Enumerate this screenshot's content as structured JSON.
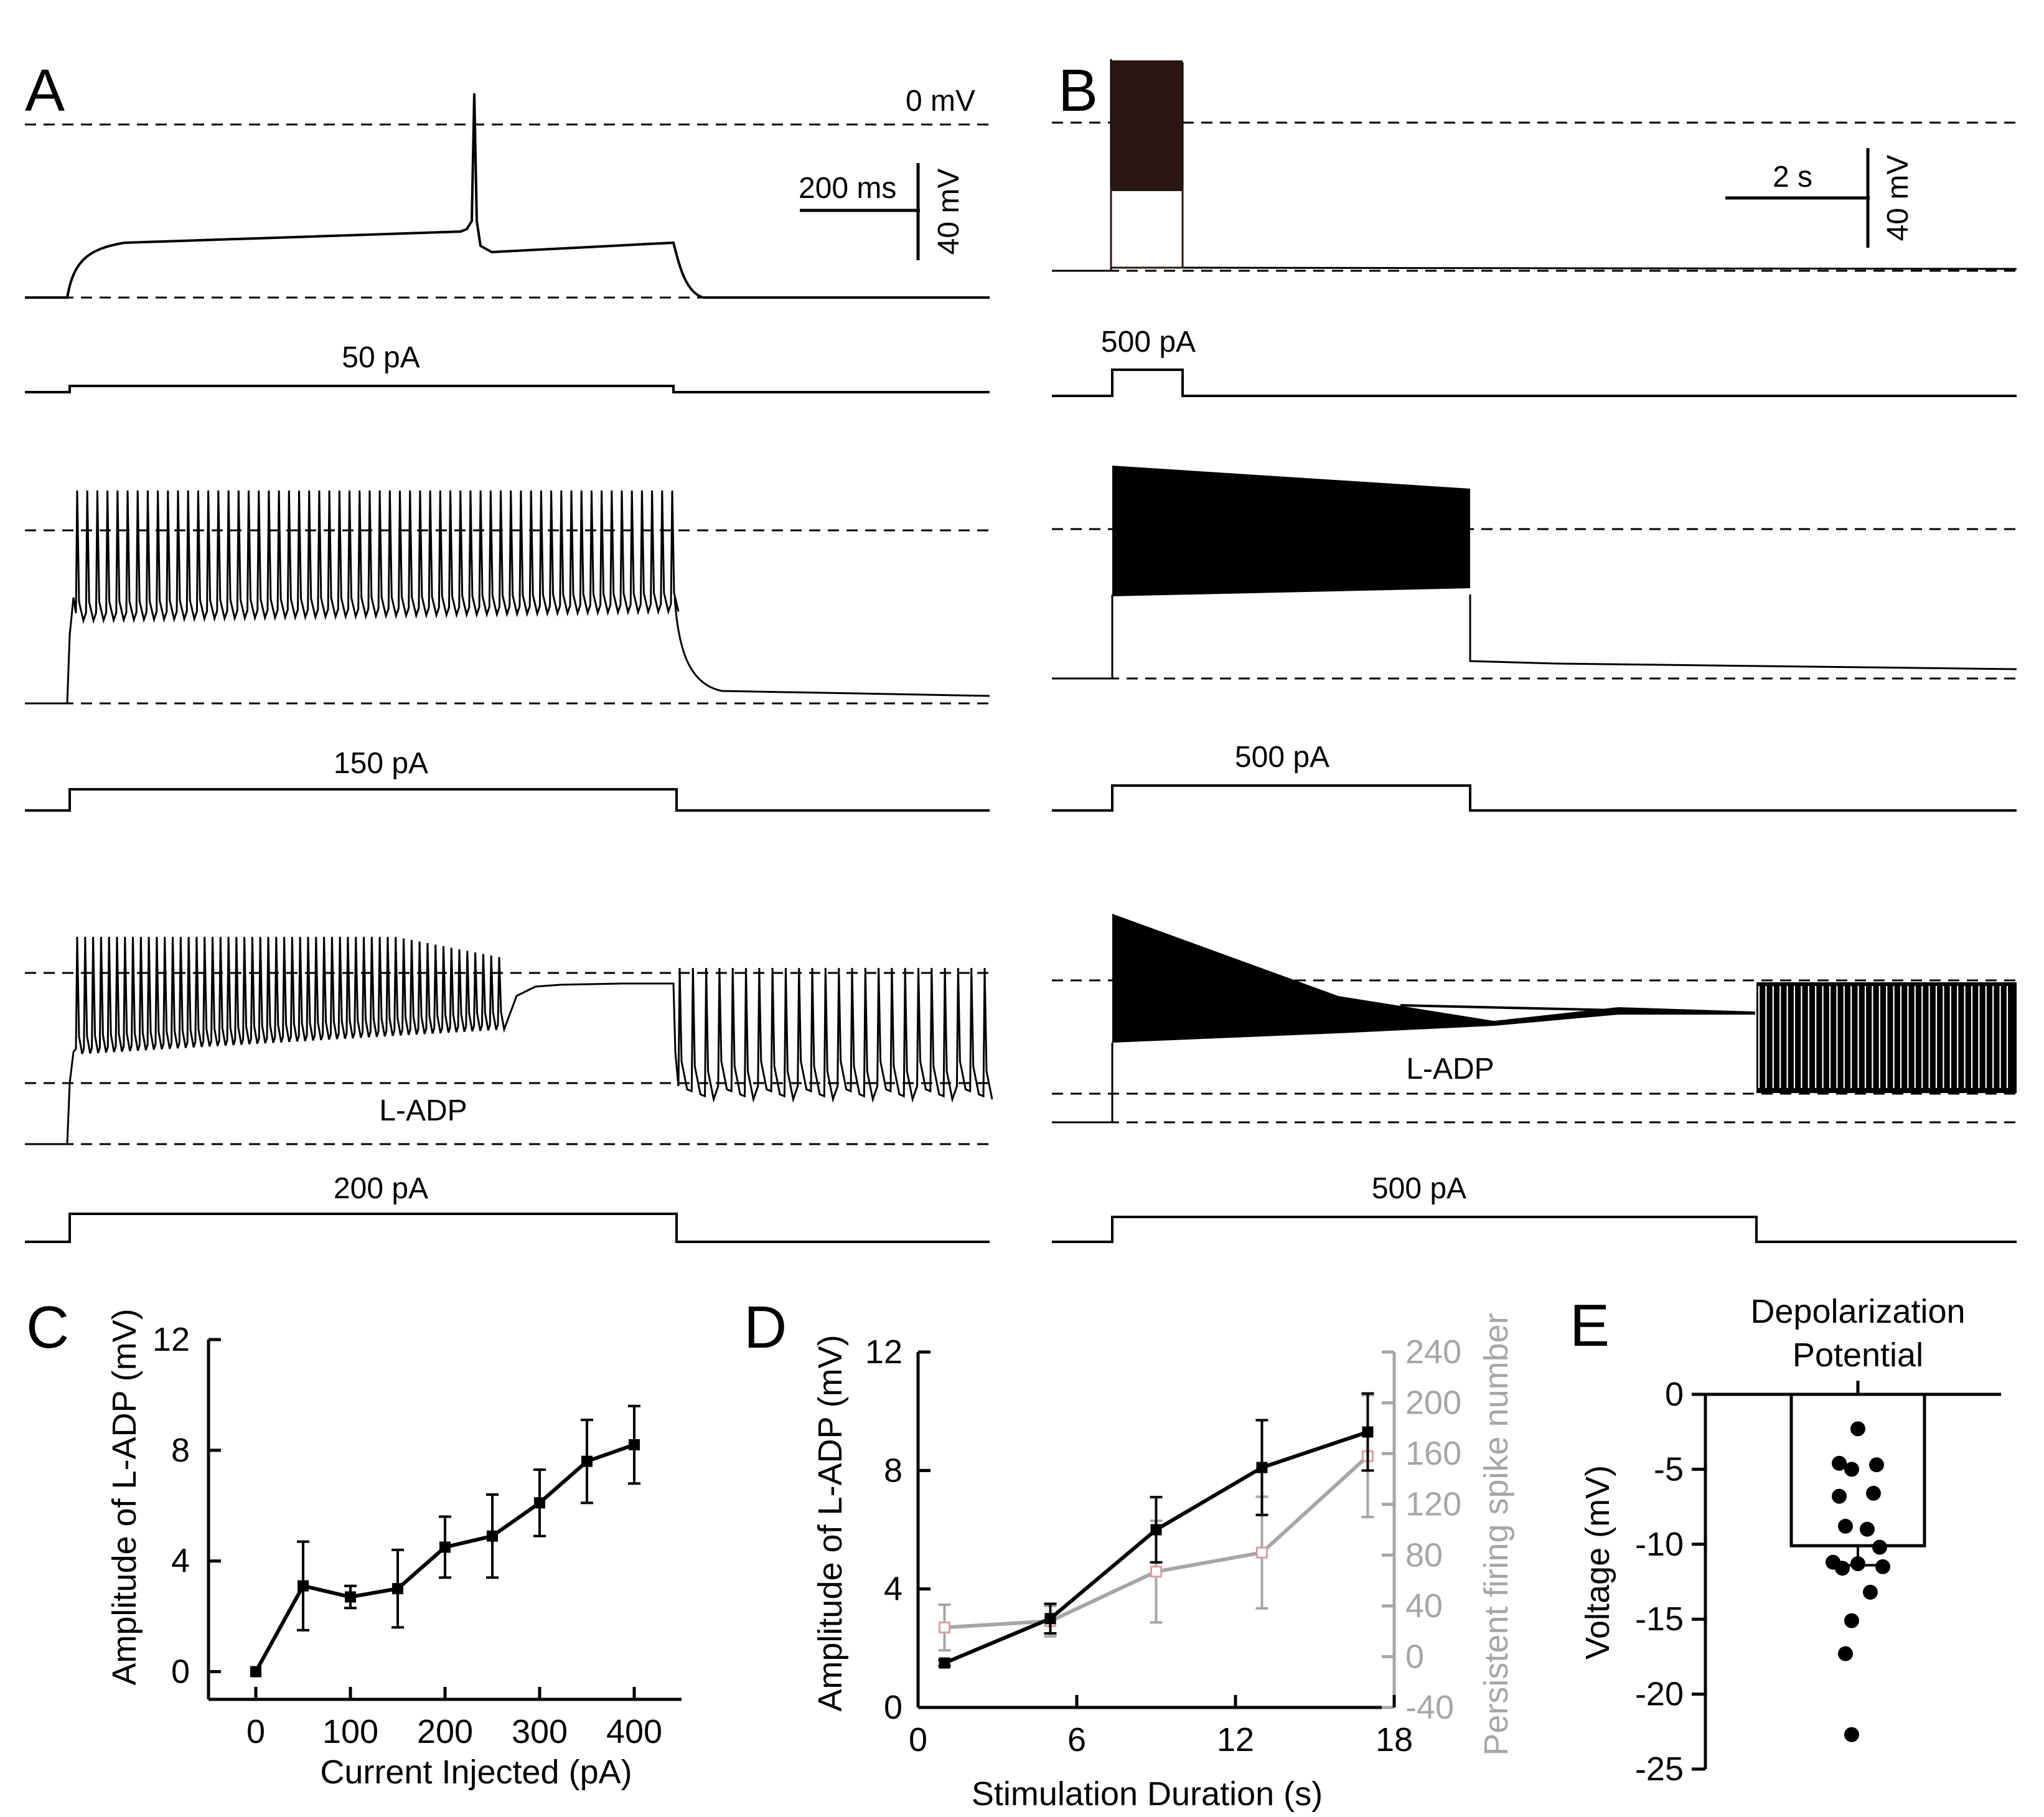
{
  "colors": {
    "black": "#000000",
    "gray": "#a6a6a6",
    "dark_brown": "#2a1612"
  },
  "panels": {
    "A": {
      "letter": "A",
      "zero_label": "0 mV",
      "scalebar": {
        "time": "200 ms",
        "voltage": "40 mV"
      },
      "stim_labels": [
        "50 pA",
        "150 pA",
        "200 pA"
      ],
      "ladp_label": "L-ADP"
    },
    "B": {
      "letter": "B",
      "scalebar": {
        "time": "2 s",
        "voltage": "40 mV"
      },
      "stim_labels": [
        "500 pA",
        "500 pA",
        "500 pA"
      ],
      "ladp_label": "L-ADP"
    },
    "C": {
      "letter": "C"
    },
    "D": {
      "letter": "D"
    },
    "E": {
      "letter": "E"
    }
  },
  "chart_data": [
    {
      "panel": "C",
      "type": "line",
      "title": "",
      "xlabel": "Current Injected (pA)",
      "ylabel": "Amplitude of L-ADP  (mV)",
      "xlim": [
        -50,
        450
      ],
      "ylim": [
        -1,
        12
      ],
      "xticks": [
        0,
        100,
        200,
        300,
        400
      ],
      "yticks": [
        0,
        4,
        8,
        12
      ],
      "series": [
        {
          "name": "L-ADP amplitude",
          "color": "#000000",
          "x": [
            0,
            50,
            100,
            150,
            200,
            250,
            300,
            350,
            400
          ],
          "y": [
            0,
            3.1,
            2.7,
            3.0,
            4.5,
            4.9,
            6.1,
            7.6,
            8.2
          ],
          "err": [
            0,
            1.6,
            0.4,
            1.4,
            1.1,
            1.5,
            1.2,
            1.5,
            1.4
          ]
        }
      ]
    },
    {
      "panel": "D",
      "type": "line",
      "title": "",
      "xlabel": "Stimulation Duration (s)",
      "ylabel": "Amplitude of L-ADP (mV)",
      "y2label": "Persistent firing spike number",
      "xlim": [
        0,
        18
      ],
      "ylim": [
        0,
        12
      ],
      "y2lim": [
        -40,
        240
      ],
      "xticks": [
        0,
        6,
        12,
        18
      ],
      "yticks": [
        0,
        4,
        8,
        12
      ],
      "y2ticks": [
        -40,
        0,
        40,
        80,
        120,
        160,
        200,
        240
      ],
      "series": [
        {
          "name": "Amplitude of L-ADP",
          "axis": "left",
          "color": "#000000",
          "x": [
            1,
            5,
            9,
            13,
            17
          ],
          "y": [
            1.5,
            3.0,
            6.0,
            8.1,
            9.3
          ],
          "err": [
            0.1,
            0.5,
            1.1,
            1.6,
            1.3
          ]
        },
        {
          "name": "Persistent firing spike number",
          "axis": "right",
          "color": "#a6a6a6",
          "x": [
            1,
            5,
            9,
            13,
            17
          ],
          "y": [
            23,
            28,
            67,
            82,
            158
          ],
          "err": [
            18,
            12,
            40,
            44,
            48
          ]
        }
      ]
    },
    {
      "panel": "E",
      "type": "bar",
      "title": "Depolarization Potential",
      "xlabel": "",
      "ylabel": "Voltage (mV)",
      "ylim": [
        -25,
        0
      ],
      "yticks": [
        0,
        -5,
        -10,
        -15,
        -20,
        -25
      ],
      "categories": [
        "Depolarization Potential"
      ],
      "values": [
        -10.1
      ],
      "sem": 1.3,
      "points": [
        -2.3,
        -4.6,
        -4.7,
        -5.0,
        -6.6,
        -6.8,
        -8.8,
        -9.0,
        -10.2,
        -11.2,
        -11.3,
        -11.5,
        -11.6,
        -13.2,
        -15.1,
        -17.3,
        -22.7
      ]
    }
  ]
}
